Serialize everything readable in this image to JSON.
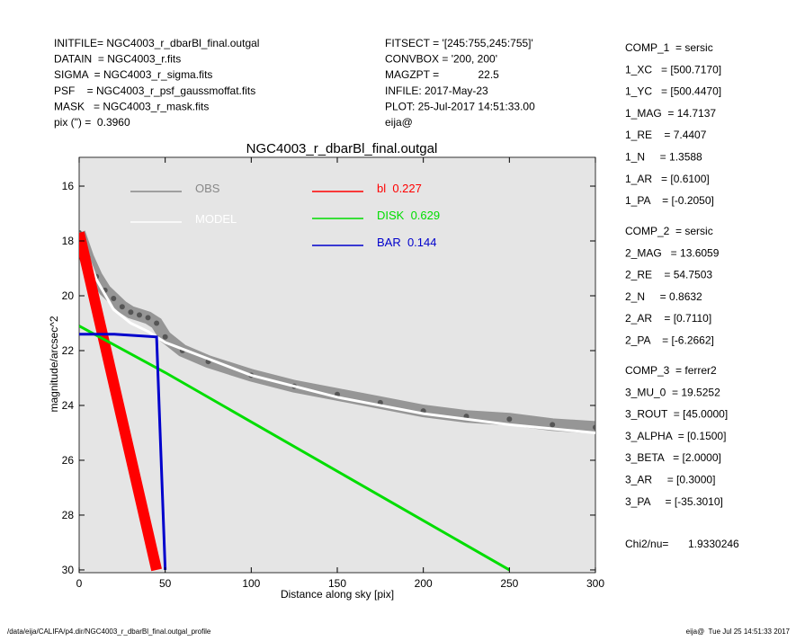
{
  "header": {
    "left": [
      "INITFILE= NGC4003_r_dbarBl_final.outgal",
      "DATAIN  = NGC4003_r.fits",
      "SIGMA  = NGC4003_r_sigma.fits",
      "PSF    = NGC4003_r_psf_gaussmoffat.fits",
      "MASK   = NGC4003_r_mask.fits",
      "pix (\") =  0.3960"
    ],
    "middle": [
      "FITSECT = '[245:755,245:755]'",
      "CONVBOX = '200, 200'",
      "MAGZPT =             22.5",
      "INFILE: 2017-May-23",
      "PLOT: 25-Jul-2017 14:51:33.00",
      "eija@"
    ]
  },
  "components": [
    [
      "COMP_1  = sersic",
      "1_XC   = [500.7170]",
      "1_YC   = [500.4470]",
      "1_MAG  = 14.7137",
      "1_RE    = 7.4407",
      "1_N     = 1.3588",
      "1_AR   = [0.6100]",
      "1_PA    = [-0.2050]"
    ],
    [
      "COMP_2  = sersic",
      "2_MAG   = 13.6059",
      "2_RE    = 54.7503",
      "2_N     = 0.8632",
      "2_AR    = [0.7110]",
      "2_PA    = [-6.2662]"
    ],
    [
      "COMP_3  = ferrer2",
      "3_MU_0  = 19.5252",
      "3_ROUT  = [45.0000]",
      "3_ALPHA  = [0.1500]",
      "3_BETA   = [2.0000]",
      "3_AR     = [0.3000]",
      "3_PA     = [-35.3010]"
    ]
  ],
  "chi2": {
    "label": "Chi2/nu=",
    "value": "1.9330246"
  },
  "footer": {
    "left": "/data/eija/CALIFA/p4.dir/NGC4003_r_dbarBl_final.outgal_profile",
    "right": "eija@  Tue Jul 25 14:51:33 2017"
  },
  "chart_data": {
    "type": "scatter",
    "title": "NGC4003_r_dbarBl_final.outgal",
    "x_label": "Distance along sky [pix]",
    "y_label": "magnitude/arcsec^2",
    "xlim": [
      0,
      300
    ],
    "ylim": [
      30.1,
      14.95
    ],
    "xticks": [
      0,
      50,
      100,
      150,
      200,
      250,
      300
    ],
    "yticks": [
      16,
      18,
      20,
      22,
      24,
      26,
      28,
      30
    ],
    "background": "#e5e5e5",
    "series": [
      {
        "name": "OBS",
        "color": "#555555",
        "legend_color": "#888888",
        "style": "points",
        "x": [
          0,
          5,
          10,
          15,
          20,
          25,
          30,
          35,
          40,
          45,
          50,
          60,
          75,
          100,
          125,
          150,
          175,
          200,
          225,
          250,
          275,
          300
        ],
        "values": [
          17.7,
          18.6,
          19.3,
          19.8,
          20.1,
          20.4,
          20.6,
          20.7,
          20.8,
          21.0,
          21.5,
          22.0,
          22.4,
          22.9,
          23.3,
          23.6,
          23.9,
          24.2,
          24.4,
          24.5,
          24.7,
          24.8
        ]
      },
      {
        "name": "MODEL",
        "color": "#ffffff",
        "legend_color": "#ffffff",
        "style": "line",
        "x": [
          0,
          10,
          20,
          30,
          40,
          50,
          75,
          100,
          150,
          200,
          250,
          300
        ],
        "values": [
          17.7,
          19.4,
          20.5,
          21.0,
          21.3,
          21.7,
          22.3,
          22.9,
          23.7,
          24.3,
          24.7,
          25.0
        ]
      },
      {
        "name": "bl  0.227",
        "color": "#ff0000",
        "legend_color": "#ff0000",
        "style": "band",
        "x": [
          0,
          45
        ],
        "values": [
          17.7,
          30
        ]
      },
      {
        "name": "DISK  0.629",
        "color": "#00dd00",
        "legend_color": "#00dd00",
        "style": "line",
        "x": [
          0,
          50,
          100,
          150,
          200,
          250
        ],
        "values": [
          21.1,
          22.8,
          24.6,
          26.4,
          28.2,
          30
        ]
      },
      {
        "name": "BAR  0.144",
        "color": "#0000cc",
        "legend_color": "#0000cc",
        "style": "line",
        "x": [
          0,
          20,
          45,
          50
        ],
        "values": [
          21.4,
          21.4,
          21.5,
          30
        ]
      }
    ]
  }
}
